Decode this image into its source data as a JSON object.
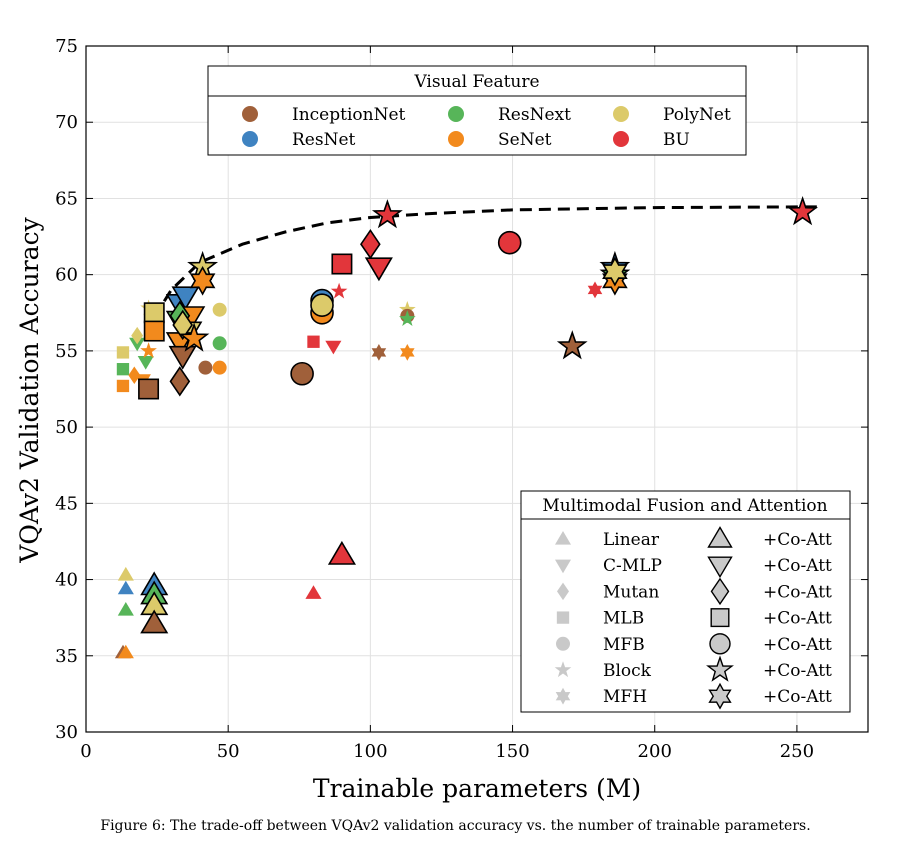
{
  "chart_data": {
    "type": "scatter",
    "xlabel": "Trainable parameters (M)",
    "ylabel": "VQAv2 Validation Accuracy",
    "xlim": [
      0,
      275
    ],
    "ylim": [
      30,
      75
    ],
    "x_ticks": [
      "0",
      "50",
      "100",
      "150",
      "200",
      "250"
    ],
    "y_ticks": [
      "30",
      "35",
      "40",
      "45",
      "50",
      "55",
      "60",
      "65",
      "70",
      "75"
    ],
    "grid": true,
    "colors": {
      "InceptionNet": "#a0603a",
      "ResNet": "#3f83c1",
      "ResNext": "#57b559",
      "SeNet": "#f28a1d",
      "PolyNet": "#dcca6a",
      "BU": "#e2363b"
    },
    "legend_visual": {
      "title": "Visual Feature",
      "entries": [
        "InceptionNet",
        "ResNext",
        "PolyNet",
        "ResNet",
        "SeNet",
        "BU"
      ]
    },
    "legend_fusion": {
      "title": "Multimodal Fusion and Attention",
      "co_att_label": "+Co-Att",
      "entries": [
        {
          "name": "Linear",
          "marker": "triangle-up"
        },
        {
          "name": "C-MLP",
          "marker": "triangle-down"
        },
        {
          "name": "Mutan",
          "marker": "diamond"
        },
        {
          "name": "MLB",
          "marker": "square"
        },
        {
          "name": "MFB",
          "marker": "circle"
        },
        {
          "name": "Block",
          "marker": "star"
        },
        {
          "name": "MFH",
          "marker": "hexagram"
        }
      ]
    },
    "frontier": [
      [
        24,
        57.2
      ],
      [
        30,
        59.0
      ],
      [
        40,
        60.8
      ],
      [
        55,
        62.0
      ],
      [
        70,
        62.8
      ],
      [
        85,
        63.4
      ],
      [
        100,
        63.75
      ],
      [
        120,
        64.0
      ],
      [
        150,
        64.25
      ],
      [
        200,
        64.4
      ],
      [
        258,
        64.45
      ]
    ],
    "points": [
      {
        "x": 14,
        "y": 40.3,
        "feature": "PolyNet",
        "marker": "triangle-up",
        "coatt": false
      },
      {
        "x": 14,
        "y": 39.4,
        "feature": "ResNet",
        "marker": "triangle-up",
        "coatt": false
      },
      {
        "x": 14,
        "y": 38.0,
        "feature": "ResNext",
        "marker": "triangle-up",
        "coatt": false
      },
      {
        "x": 13,
        "y": 35.2,
        "feature": "InceptionNet",
        "marker": "triangle-up",
        "coatt": false
      },
      {
        "x": 14,
        "y": 35.2,
        "feature": "SeNet",
        "marker": "triangle-up",
        "coatt": false
      },
      {
        "x": 80,
        "y": 39.1,
        "feature": "BU",
        "marker": "triangle-up",
        "coatt": false
      },
      {
        "x": 24,
        "y": 39.6,
        "feature": "ResNet",
        "marker": "triangle-up",
        "coatt": true
      },
      {
        "x": 24,
        "y": 39.0,
        "feature": "ResNext",
        "marker": "triangle-up",
        "coatt": true
      },
      {
        "x": 24,
        "y": 38.3,
        "feature": "PolyNet",
        "marker": "triangle-up",
        "coatt": true
      },
      {
        "x": 24,
        "y": 37.1,
        "feature": "InceptionNet",
        "marker": "triangle-up",
        "coatt": true
      },
      {
        "x": 90,
        "y": 41.6,
        "feature": "BU",
        "marker": "triangle-up",
        "coatt": true
      },
      {
        "x": 13,
        "y": 54.9,
        "feature": "PolyNet",
        "marker": "square",
        "coatt": false
      },
      {
        "x": 13,
        "y": 53.8,
        "feature": "ResNext",
        "marker": "square",
        "coatt": false
      },
      {
        "x": 13,
        "y": 52.7,
        "feature": "SeNet",
        "marker": "square",
        "coatt": false
      },
      {
        "x": 18,
        "y": 55.5,
        "feature": "ResNext",
        "marker": "triangle-down",
        "coatt": false
      },
      {
        "x": 21,
        "y": 54.3,
        "feature": "ResNext",
        "marker": "triangle-down",
        "coatt": false
      },
      {
        "x": 20,
        "y": 53.1,
        "feature": "SeNet",
        "marker": "triangle-down",
        "coatt": false
      },
      {
        "x": 18,
        "y": 56.0,
        "feature": "PolyNet",
        "marker": "diamond",
        "coatt": false
      },
      {
        "x": 17,
        "y": 53.4,
        "feature": "SeNet",
        "marker": "diamond",
        "coatt": false
      },
      {
        "x": 22,
        "y": 57.8,
        "feature": "PolyNet",
        "marker": "star",
        "coatt": false
      },
      {
        "x": 22,
        "y": 55.0,
        "feature": "SeNet",
        "marker": "star",
        "coatt": false
      },
      {
        "x": 24,
        "y": 57.1,
        "feature": "ResNext",
        "marker": "star",
        "coatt": false
      },
      {
        "x": 24,
        "y": 57.5,
        "feature": "PolyNet",
        "marker": "square",
        "coatt": true
      },
      {
        "x": 24,
        "y": 56.3,
        "feature": "SeNet",
        "marker": "square",
        "coatt": true
      },
      {
        "x": 22,
        "y": 52.5,
        "feature": "InceptionNet",
        "marker": "square",
        "coatt": true
      },
      {
        "x": 33,
        "y": 58.1,
        "feature": "ResNet",
        "marker": "triangle-down",
        "coatt": true
      },
      {
        "x": 35,
        "y": 58.6,
        "feature": "ResNet",
        "marker": "triangle-down",
        "coatt": true
      },
      {
        "x": 33,
        "y": 57.0,
        "feature": "ResNext",
        "marker": "triangle-down",
        "coatt": true
      },
      {
        "x": 37,
        "y": 57.3,
        "feature": "SeNet",
        "marker": "triangle-down",
        "coatt": true
      },
      {
        "x": 36,
        "y": 56.3,
        "feature": "PolyNet",
        "marker": "triangle-down",
        "coatt": true
      },
      {
        "x": 33,
        "y": 55.6,
        "feature": "SeNet",
        "marker": "triangle-down",
        "coatt": true
      },
      {
        "x": 34,
        "y": 54.7,
        "feature": "InceptionNet",
        "marker": "triangle-down",
        "coatt": true
      },
      {
        "x": 33,
        "y": 57.3,
        "feature": "ResNext",
        "marker": "diamond",
        "coatt": true
      },
      {
        "x": 34,
        "y": 56.7,
        "feature": "PolyNet",
        "marker": "diamond",
        "coatt": true
      },
      {
        "x": 33,
        "y": 53.0,
        "feature": "InceptionNet",
        "marker": "diamond",
        "coatt": true
      },
      {
        "x": 38,
        "y": 55.8,
        "feature": "SeNet",
        "marker": "star",
        "coatt": true
      },
      {
        "x": 41,
        "y": 60.5,
        "feature": "PolyNet",
        "marker": "star",
        "coatt": true
      },
      {
        "x": 41,
        "y": 59.6,
        "feature": "SeNet",
        "marker": "hexagram",
        "coatt": true
      },
      {
        "x": 42,
        "y": 53.9,
        "feature": "InceptionNet",
        "marker": "circle",
        "coatt": false
      },
      {
        "x": 47,
        "y": 57.7,
        "feature": "PolyNet",
        "marker": "circle",
        "coatt": false
      },
      {
        "x": 47,
        "y": 55.5,
        "feature": "ResNext",
        "marker": "circle",
        "coatt": false
      },
      {
        "x": 47,
        "y": 53.9,
        "feature": "SeNet",
        "marker": "circle",
        "coatt": false
      },
      {
        "x": 76,
        "y": 53.5,
        "feature": "InceptionNet",
        "marker": "circle",
        "coatt": true
      },
      {
        "x": 83,
        "y": 58.3,
        "feature": "ResNet",
        "marker": "circle",
        "coatt": true
      },
      {
        "x": 83,
        "y": 57.5,
        "feature": "SeNet",
        "marker": "circle",
        "coatt": true
      },
      {
        "x": 83,
        "y": 58.0,
        "feature": "PolyNet",
        "marker": "circle",
        "coatt": true
      },
      {
        "x": 80,
        "y": 55.6,
        "feature": "BU",
        "marker": "square",
        "coatt": false
      },
      {
        "x": 87,
        "y": 55.3,
        "feature": "BU",
        "marker": "triangle-down",
        "coatt": false
      },
      {
        "x": 89,
        "y": 58.9,
        "feature": "BU",
        "marker": "star",
        "coatt": false
      },
      {
        "x": 90,
        "y": 60.7,
        "feature": "BU",
        "marker": "square",
        "coatt": true
      },
      {
        "x": 100,
        "y": 62.0,
        "feature": "BU",
        "marker": "diamond",
        "coatt": true
      },
      {
        "x": 103,
        "y": 60.5,
        "feature": "BU",
        "marker": "triangle-down",
        "coatt": true
      },
      {
        "x": 106,
        "y": 63.9,
        "feature": "BU",
        "marker": "star",
        "coatt": true
      },
      {
        "x": 103,
        "y": 54.9,
        "feature": "InceptionNet",
        "marker": "hexagram",
        "coatt": false
      },
      {
        "x": 113,
        "y": 57.7,
        "feature": "PolyNet",
        "marker": "star",
        "coatt": false
      },
      {
        "x": 113,
        "y": 57.3,
        "feature": "InceptionNet",
        "marker": "circle",
        "coatt": false
      },
      {
        "x": 113,
        "y": 57.1,
        "feature": "ResNext",
        "marker": "star",
        "coatt": false
      },
      {
        "x": 113,
        "y": 54.9,
        "feature": "SeNet",
        "marker": "hexagram",
        "coatt": false
      },
      {
        "x": 149,
        "y": 62.1,
        "feature": "BU",
        "marker": "circle",
        "coatt": true
      },
      {
        "x": 171,
        "y": 55.3,
        "feature": "InceptionNet",
        "marker": "star",
        "coatt": true
      },
      {
        "x": 179,
        "y": 59.0,
        "feature": "BU",
        "marker": "hexagram",
        "coatt": false
      },
      {
        "x": 186,
        "y": 60.5,
        "feature": "ResNet",
        "marker": "star",
        "coatt": true
      },
      {
        "x": 186,
        "y": 60.0,
        "feature": "ResNext",
        "marker": "star",
        "coatt": true
      },
      {
        "x": 186,
        "y": 59.6,
        "feature": "SeNet",
        "marker": "hexagram",
        "coatt": true
      },
      {
        "x": 186,
        "y": 60.2,
        "feature": "PolyNet",
        "marker": "hexagram",
        "coatt": true
      },
      {
        "x": 252,
        "y": 64.1,
        "feature": "BU",
        "marker": "star",
        "coatt": true
      }
    ]
  },
  "caption": "Figure 6: The trade-off between VQAv2 validation accuracy vs. the number of trainable parameters."
}
